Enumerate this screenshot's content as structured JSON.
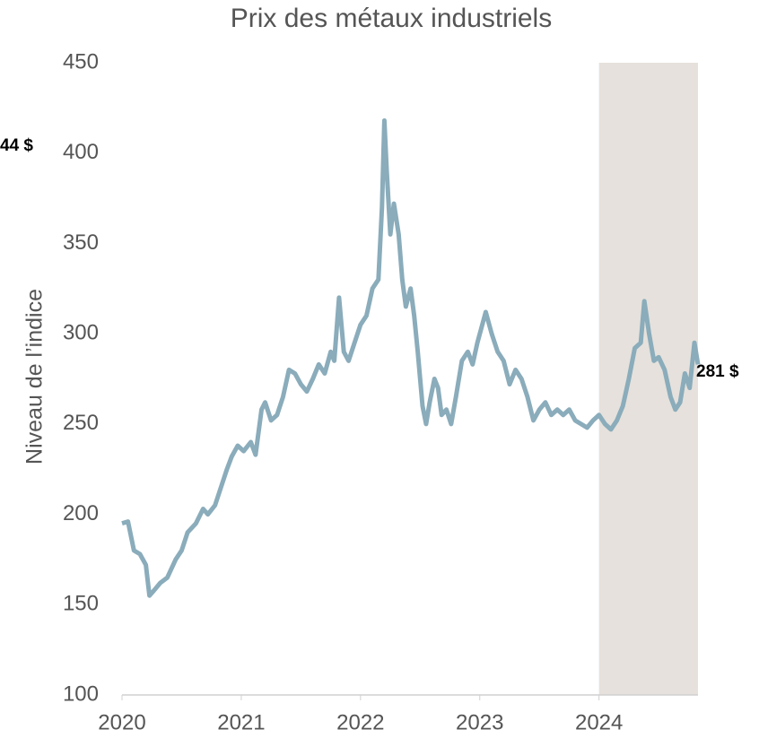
{
  "chart_data": {
    "type": "line",
    "title": "Prix des métaux industriels",
    "y_label": "Niveau de l’indice",
    "annotations": [
      "44 $",
      "281 $"
    ],
    "shaded_region": [
      2024,
      2024.83
    ],
    "shade_color": "#e6e1dc",
    "xlim": [
      2020,
      2024.83
    ],
    "xticks": [
      2020,
      2021,
      2022,
      2023,
      2024
    ],
    "ylim": [
      100,
      450
    ],
    "yticks": [
      100,
      150,
      200,
      250,
      300,
      350,
      400,
      450
    ],
    "series": [
      {
        "color": "#8aacbb",
        "x": [
          2020.0,
          2020.05,
          2020.1,
          2020.15,
          2020.2,
          2020.23,
          2020.27,
          2020.32,
          2020.38,
          2020.45,
          2020.5,
          2020.55,
          2020.62,
          2020.68,
          2020.72,
          2020.78,
          2020.82,
          2020.88,
          2020.92,
          2020.97,
          2021.02,
          2021.08,
          2021.12,
          2021.17,
          2021.2,
          2021.25,
          2021.3,
          2021.35,
          2021.4,
          2021.45,
          2021.5,
          2021.55,
          2021.6,
          2021.65,
          2021.7,
          2021.75,
          2021.78,
          2021.82,
          2021.86,
          2021.9,
          2021.95,
          2022.0,
          2022.05,
          2022.1,
          2022.15,
          2022.18,
          2022.2,
          2022.22,
          2022.25,
          2022.28,
          2022.32,
          2022.35,
          2022.38,
          2022.42,
          2022.45,
          2022.48,
          2022.52,
          2022.55,
          2022.58,
          2022.62,
          2022.65,
          2022.68,
          2022.72,
          2022.76,
          2022.8,
          2022.85,
          2022.9,
          2022.94,
          2022.98,
          2023.05,
          2023.1,
          2023.15,
          2023.2,
          2023.25,
          2023.3,
          2023.35,
          2023.4,
          2023.45,
          2023.5,
          2023.55,
          2023.6,
          2023.65,
          2023.7,
          2023.75,
          2023.8,
          2023.85,
          2023.9,
          2023.95,
          2024.0,
          2024.05,
          2024.1,
          2024.15,
          2024.2,
          2024.25,
          2024.3,
          2024.35,
          2024.38,
          2024.42,
          2024.46,
          2024.5,
          2024.55,
          2024.6,
          2024.64,
          2024.68,
          2024.72,
          2024.76,
          2024.8,
          2024.83
        ],
        "values": [
          195,
          196,
          180,
          178,
          172,
          155,
          158,
          162,
          165,
          175,
          180,
          190,
          195,
          203,
          200,
          205,
          213,
          225,
          232,
          238,
          235,
          240,
          233,
          258,
          262,
          252,
          255,
          265,
          280,
          278,
          272,
          268,
          275,
          283,
          278,
          290,
          285,
          320,
          290,
          285,
          295,
          305,
          310,
          325,
          330,
          370,
          418,
          390,
          355,
          372,
          355,
          330,
          315,
          325,
          310,
          290,
          260,
          250,
          262,
          275,
          270,
          255,
          258,
          250,
          265,
          285,
          290,
          283,
          295,
          312,
          300,
          290,
          285,
          272,
          280,
          275,
          265,
          252,
          258,
          262,
          255,
          258,
          255,
          258,
          252,
          250,
          248,
          252,
          255,
          250,
          247,
          252,
          260,
          275,
          292,
          295,
          318,
          300,
          285,
          287,
          280,
          265,
          258,
          262,
          278,
          270,
          295,
          283
        ]
      }
    ]
  }
}
